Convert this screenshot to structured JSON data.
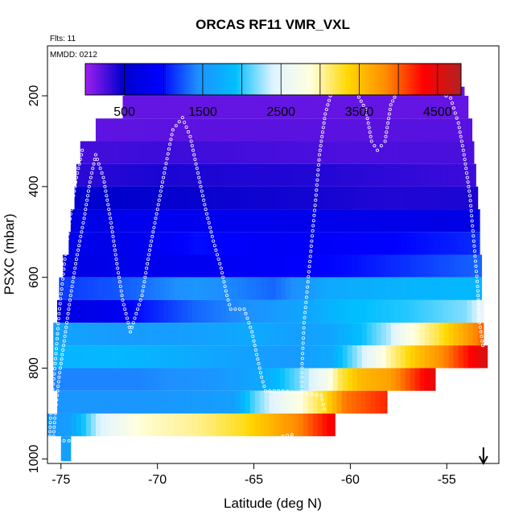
{
  "chart_data": {
    "type": "heatmap",
    "title": "ORCAS RF11 VMR_VXL",
    "flights_note": "Flts: 11",
    "date_note": "MMDD: 0212",
    "xlabel": "Latitude (deg N)",
    "ylabel": "PSXC (mbar)",
    "xlim": [
      -75.7,
      -52.3
    ],
    "ylim": [
      1010,
      90
    ],
    "x_ticks": [
      -75,
      -70,
      -65,
      -60,
      -55
    ],
    "x_tick_labels": [
      "-75",
      "-70",
      "-65",
      "-60",
      "-55"
    ],
    "y_ticks": [
      200,
      400,
      600,
      800,
      1000
    ],
    "y_tick_labels": [
      "200",
      "400",
      "600",
      "800",
      "1000"
    ],
    "colorbar": {
      "range": [
        0,
        4800
      ],
      "ticks": [
        500,
        1500,
        2500,
        3500,
        4500
      ],
      "tick_labels": [
        "500",
        "1500",
        "2500",
        "3500",
        "4500"
      ],
      "colors": [
        "#a020f0",
        "#0000cd",
        "#0000ff",
        "#1e90ff",
        "#00bfff",
        "#e0f4ff",
        "#ffffe0",
        "#ffd700",
        "#ff8c00",
        "#ff0000",
        "#b22222"
      ]
    },
    "bands": [
      {
        "p": [
          180,
          200
        ],
        "x0": -71.7,
        "x1": -54.1,
        "stops": [
          [
            -71.7,
            150
          ],
          [
            -54.1,
            150
          ]
        ]
      },
      {
        "p": [
          200,
          250
        ],
        "x0": -71.8,
        "x1": -53.9,
        "stops": [
          [
            -71.8,
            180
          ],
          [
            -54,
            180
          ]
        ]
      },
      {
        "p": [
          250,
          300
        ],
        "x0": -73.2,
        "x1": -53.7,
        "stops": [
          [
            -73.2,
            200
          ],
          [
            -53.7,
            220
          ]
        ]
      },
      {
        "p": [
          300,
          350
        ],
        "x0": -74,
        "x1": -53.6,
        "stops": [
          [
            -74,
            280
          ],
          [
            -70,
            300
          ],
          [
            -60,
            250
          ],
          [
            -53.6,
            260
          ]
        ]
      },
      {
        "p": [
          350,
          400
        ],
        "x0": -74.2,
        "x1": -53.5,
        "stops": [
          [
            -74.2,
            350
          ],
          [
            -70,
            400
          ],
          [
            -62,
            380
          ],
          [
            -53.5,
            300
          ]
        ]
      },
      {
        "p": [
          400,
          450
        ],
        "x0": -74.3,
        "x1": -53.4,
        "stops": [
          [
            -74.3,
            520
          ],
          [
            -72,
            480
          ],
          [
            -62,
            420
          ],
          [
            -58,
            380
          ],
          [
            -53.4,
            400
          ]
        ]
      },
      {
        "p": [
          450,
          500
        ],
        "x0": -74.5,
        "x1": -53.3,
        "stops": [
          [
            -74.5,
            680
          ],
          [
            -70,
            820
          ],
          [
            -62,
            760
          ],
          [
            -53.3,
            720
          ]
        ]
      },
      {
        "p": [
          500,
          550
        ],
        "x0": -74.6,
        "x1": -53.3,
        "stops": [
          [
            -74.6,
            780
          ],
          [
            -72,
            740
          ],
          [
            -68,
            1000
          ],
          [
            -64,
            880
          ],
          [
            -58,
            950
          ],
          [
            -53.3,
            1100
          ]
        ]
      },
      {
        "p": [
          550,
          600
        ],
        "x0": -74.9,
        "x1": -53.2,
        "stops": [
          [
            -74.9,
            700
          ],
          [
            -72,
            760
          ],
          [
            -68,
            820
          ],
          [
            -64,
            900
          ],
          [
            -60,
            1000
          ],
          [
            -53.2,
            1300
          ]
        ]
      },
      {
        "p": [
          600,
          650
        ],
        "x0": -75.1,
        "x1": -53.2,
        "stops": [
          [
            -75.1,
            1150
          ],
          [
            -72,
            1250
          ],
          [
            -68,
            1500
          ],
          [
            -64,
            1300
          ],
          [
            -61,
            1700
          ],
          [
            -57,
            1800
          ],
          [
            -53.2,
            1850
          ]
        ]
      },
      {
        "p": [
          650,
          700
        ],
        "x0": -75.2,
        "x1": -53.1,
        "stops": [
          [
            -75.2,
            700
          ],
          [
            -72.5,
            780
          ],
          [
            -71,
            1000
          ],
          [
            -68,
            1300
          ],
          [
            -64.5,
            1500
          ],
          [
            -62,
            1700
          ],
          [
            -60,
            1900
          ],
          [
            -57,
            2000
          ],
          [
            -54,
            2200
          ],
          [
            -53.1,
            2500
          ]
        ]
      },
      {
        "p": [
          700,
          750
        ],
        "x0": -75.4,
        "x1": -53.1,
        "stops": [
          [
            -75.4,
            1650
          ],
          [
            -72,
            1550
          ],
          [
            -68,
            1600
          ],
          [
            -65,
            1700
          ],
          [
            -63,
            1600
          ],
          [
            -61,
            1650
          ],
          [
            -59.5,
            1900
          ],
          [
            -58,
            2300
          ],
          [
            -57,
            2800
          ],
          [
            -55.5,
            3200
          ],
          [
            -54,
            3700
          ],
          [
            -53.1,
            4000
          ]
        ]
      },
      {
        "p": [
          750,
          800
        ],
        "x0": -75.4,
        "x1": -52.9,
        "stops": [
          [
            -75.4,
            1800
          ],
          [
            -72,
            1850
          ],
          [
            -68,
            1700
          ],
          [
            -65,
            1600
          ],
          [
            -63,
            1550
          ],
          [
            -61,
            1700
          ],
          [
            -59.5,
            2300
          ],
          [
            -58,
            3000
          ],
          [
            -56.5,
            3500
          ],
          [
            -55,
            3900
          ],
          [
            -53.5,
            4400
          ],
          [
            -52.9,
            4600
          ]
        ]
      },
      {
        "p": [
          800,
          850
        ],
        "x0": -75.4,
        "x1": -55.6,
        "stops": [
          [
            -75.4,
            1400
          ],
          [
            -71,
            1400
          ],
          [
            -67,
            1500
          ],
          [
            -64.5,
            1700
          ],
          [
            -62.5,
            2200
          ],
          [
            -61.3,
            2700
          ],
          [
            -60.5,
            3200
          ],
          [
            -59.5,
            3550
          ],
          [
            -58,
            3700
          ],
          [
            -56.5,
            4200
          ],
          [
            -55.6,
            4500
          ]
        ]
      },
      {
        "p": [
          850,
          900
        ],
        "x0": -75.2,
        "x1": -58.1,
        "stops": [
          [
            -75.2,
            1500
          ],
          [
            -70,
            1500
          ],
          [
            -66,
            1600
          ],
          [
            -65,
            2100
          ],
          [
            -63.5,
            2600
          ],
          [
            -62.5,
            2900
          ],
          [
            -61.3,
            3300
          ],
          [
            -60.3,
            3900
          ],
          [
            -58.1,
            4200
          ]
        ]
      },
      {
        "p": [
          900,
          950
        ],
        "x0": -75.7,
        "x1": -60.8,
        "stops": [
          [
            -75.7,
            1500
          ],
          [
            -74.5,
            1600
          ],
          [
            -73,
            2400
          ],
          [
            -71,
            2900
          ],
          [
            -68,
            3050
          ],
          [
            -65.5,
            3300
          ],
          [
            -64,
            3600
          ],
          [
            -62.5,
            3900
          ],
          [
            -61.5,
            4200
          ],
          [
            -60.8,
            4400
          ]
        ]
      },
      {
        "p": [
          950,
          1005
        ],
        "x0": -75,
        "x1": -74.5,
        "stops": [
          [
            -75,
            1600
          ],
          [
            -74.5,
            1600
          ]
        ]
      }
    ],
    "flight_track": [
      {
        "x": -71.7,
        "p": 180
      },
      {
        "x": -66,
        "p": 180
      },
      {
        "x": -62,
        "p": 180
      },
      {
        "x": -60.9,
        "p": 180
      },
      {
        "x": -60.5,
        "p": 180
      },
      {
        "x": -59.8,
        "p": 185
      },
      {
        "x": -59.2,
        "p": 230
      },
      {
        "x": -58.9,
        "p": 300
      },
      {
        "x": -58.6,
        "p": 320
      },
      {
        "x": -58.2,
        "p": 300
      },
      {
        "x": -57.9,
        "p": 220
      },
      {
        "x": -57.5,
        "p": 186
      },
      {
        "x": -56.5,
        "p": 187
      },
      {
        "x": -55.5,
        "p": 190
      },
      {
        "x": -54.8,
        "p": 205
      },
      {
        "x": -54.4,
        "p": 260
      },
      {
        "x": -54.1,
        "p": 330
      },
      {
        "x": -53.8,
        "p": 420
      },
      {
        "x": -53.6,
        "p": 520
      },
      {
        "x": -53.4,
        "p": 620
      },
      {
        "x": -53.3,
        "p": 700
      },
      {
        "x": -53.1,
        "p": 760
      }
    ],
    "flight_track_2": [
      {
        "x": -60.9,
        "p": 180
      },
      {
        "x": -61.3,
        "p": 240
      },
      {
        "x": -61.6,
        "p": 330
      },
      {
        "x": -61.8,
        "p": 430
      },
      {
        "x": -62,
        "p": 520
      },
      {
        "x": -62.2,
        "p": 610
      },
      {
        "x": -62.4,
        "p": 700
      },
      {
        "x": -62.5,
        "p": 790
      },
      {
        "x": -62.5,
        "p": 860
      }
    ],
    "flight_track_3": [
      {
        "x": -75.4,
        "p": 960
      },
      {
        "x": -75.3,
        "p": 900
      },
      {
        "x": -75.1,
        "p": 820
      },
      {
        "x": -74.8,
        "p": 730
      },
      {
        "x": -74.5,
        "p": 640
      },
      {
        "x": -74.2,
        "p": 560
      },
      {
        "x": -73.8,
        "p": 470
      },
      {
        "x": -73.5,
        "p": 390
      },
      {
        "x": -73.2,
        "p": 330
      },
      {
        "x": -72.8,
        "p": 380
      },
      {
        "x": -72.4,
        "p": 480
      },
      {
        "x": -72.1,
        "p": 570
      },
      {
        "x": -71.8,
        "p": 650
      },
      {
        "x": -71.4,
        "p": 720
      },
      {
        "x": -70.8,
        "p": 640
      },
      {
        "x": -70.4,
        "p": 540
      },
      {
        "x": -70,
        "p": 450
      },
      {
        "x": -69.6,
        "p": 360
      },
      {
        "x": -69.2,
        "p": 275
      },
      {
        "x": -68.7,
        "p": 248
      },
      {
        "x": -68.3,
        "p": 290
      },
      {
        "x": -67.9,
        "p": 370
      },
      {
        "x": -67.5,
        "p": 450
      },
      {
        "x": -67.1,
        "p": 520
      },
      {
        "x": -66.7,
        "p": 580
      },
      {
        "x": -66.4,
        "p": 640
      },
      {
        "x": -66.2,
        "p": 670
      },
      {
        "x": -65.5,
        "p": 670
      },
      {
        "x": -65.1,
        "p": 720
      },
      {
        "x": -64.8,
        "p": 780
      },
      {
        "x": -64.6,
        "p": 820
      },
      {
        "x": -64.4,
        "p": 850
      },
      {
        "x": -63.5,
        "p": 850
      },
      {
        "x": -62.5,
        "p": 855
      },
      {
        "x": -61.5,
        "p": 860
      },
      {
        "x": -61.3,
        "p": 900
      }
    ],
    "flight_track_4": [
      {
        "x": -73.9,
        "p": 320
      },
      {
        "x": -74.2,
        "p": 380
      },
      {
        "x": -74.5,
        "p": 460
      },
      {
        "x": -74.8,
        "p": 560
      },
      {
        "x": -75.1,
        "p": 680
      },
      {
        "x": -75.3,
        "p": 790
      },
      {
        "x": -75.5,
        "p": 880
      },
      {
        "x": -75.6,
        "p": 960
      },
      {
        "x": -65,
        "p": 960
      },
      {
        "x": -64.2,
        "p": 960
      },
      {
        "x": -63.5,
        "p": 950
      },
      {
        "x": -62.8,
        "p": 945
      }
    ],
    "arrow_at_latitude": -53.1
  }
}
